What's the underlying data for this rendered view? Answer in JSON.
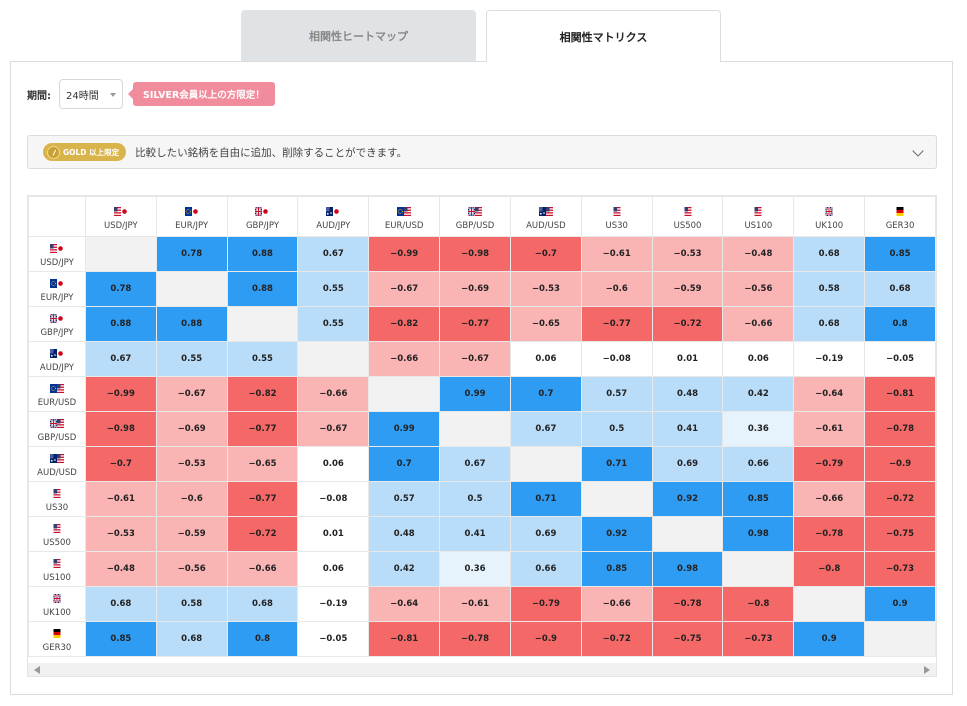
{
  "tabs": [
    {
      "label": "相関性ヒートマップ",
      "active": false
    },
    {
      "label": "相関性マトリクス",
      "active": true
    }
  ],
  "period": {
    "label": "期間:",
    "value": "24時間"
  },
  "silver_notice": "SILVER会員以上の方限定！",
  "gold": {
    "badge": "GOLD 以上限定",
    "text": "比較したい銘柄を自由に追加、削除することができます。",
    "toggle_icon": "chevron-down-icon"
  },
  "colors": {
    "strong_positive": "#2f9cf4",
    "positive": "#b9dcf9",
    "weak_positive": "#e6f3fd",
    "neutral": "#ffffff",
    "diagonal": "#f2f2f2",
    "negative": "#fbb4b4",
    "strong_negative": "#f56868"
  },
  "symbols": [
    {
      "label": "USD/JPY",
      "flag": "us-jp"
    },
    {
      "label": "EUR/JPY",
      "flag": "eu-jp"
    },
    {
      "label": "GBP/JPY",
      "flag": "gb-jp"
    },
    {
      "label": "AUD/JPY",
      "flag": "au-jp"
    },
    {
      "label": "EUR/USD",
      "flag": "eu-us"
    },
    {
      "label": "GBP/USD",
      "flag": "gb-us"
    },
    {
      "label": "AUD/USD",
      "flag": "au-us"
    },
    {
      "label": "US30",
      "flag": "us"
    },
    {
      "label": "US500",
      "flag": "us"
    },
    {
      "label": "US100",
      "flag": "us"
    },
    {
      "label": "UK100",
      "flag": "gb"
    },
    {
      "label": "GER30",
      "flag": "de"
    }
  ],
  "matrix": [
    [
      null,
      0.78,
      0.88,
      0.67,
      -0.99,
      -0.98,
      -0.7,
      -0.61,
      -0.53,
      -0.48,
      0.68,
      0.85
    ],
    [
      0.78,
      null,
      0.88,
      0.55,
      -0.67,
      -0.69,
      -0.53,
      -0.6,
      -0.59,
      -0.56,
      0.58,
      0.68
    ],
    [
      0.88,
      0.88,
      null,
      0.55,
      -0.82,
      -0.77,
      -0.65,
      -0.77,
      -0.72,
      -0.66,
      0.68,
      0.8
    ],
    [
      0.67,
      0.55,
      0.55,
      null,
      -0.66,
      -0.67,
      0.06,
      -0.08,
      0.01,
      0.06,
      -0.19,
      -0.05
    ],
    [
      -0.99,
      -0.67,
      -0.82,
      -0.66,
      null,
      0.99,
      0.7,
      0.57,
      0.48,
      0.42,
      -0.64,
      -0.81
    ],
    [
      -0.98,
      -0.69,
      -0.77,
      -0.67,
      0.99,
      null,
      0.67,
      0.5,
      0.41,
      0.36,
      -0.61,
      -0.78
    ],
    [
      -0.7,
      -0.53,
      -0.65,
      0.06,
      0.7,
      0.67,
      null,
      0.71,
      0.69,
      0.66,
      -0.79,
      -0.9
    ],
    [
      -0.61,
      -0.6,
      -0.77,
      -0.08,
      0.57,
      0.5,
      0.71,
      null,
      0.92,
      0.85,
      -0.66,
      -0.72
    ],
    [
      -0.53,
      -0.59,
      -0.72,
      0.01,
      0.48,
      0.41,
      0.69,
      0.92,
      null,
      0.98,
      -0.78,
      -0.75
    ],
    [
      -0.48,
      -0.56,
      -0.66,
      0.06,
      0.42,
      0.36,
      0.66,
      0.85,
      0.98,
      null,
      -0.8,
      -0.73
    ],
    [
      0.68,
      0.58,
      0.68,
      -0.19,
      -0.64,
      -0.61,
      -0.79,
      -0.66,
      -0.78,
      -0.8,
      null,
      0.9
    ],
    [
      0.85,
      0.68,
      0.8,
      -0.05,
      -0.81,
      -0.78,
      -0.9,
      -0.72,
      -0.75,
      -0.73,
      0.9,
      null
    ]
  ]
}
